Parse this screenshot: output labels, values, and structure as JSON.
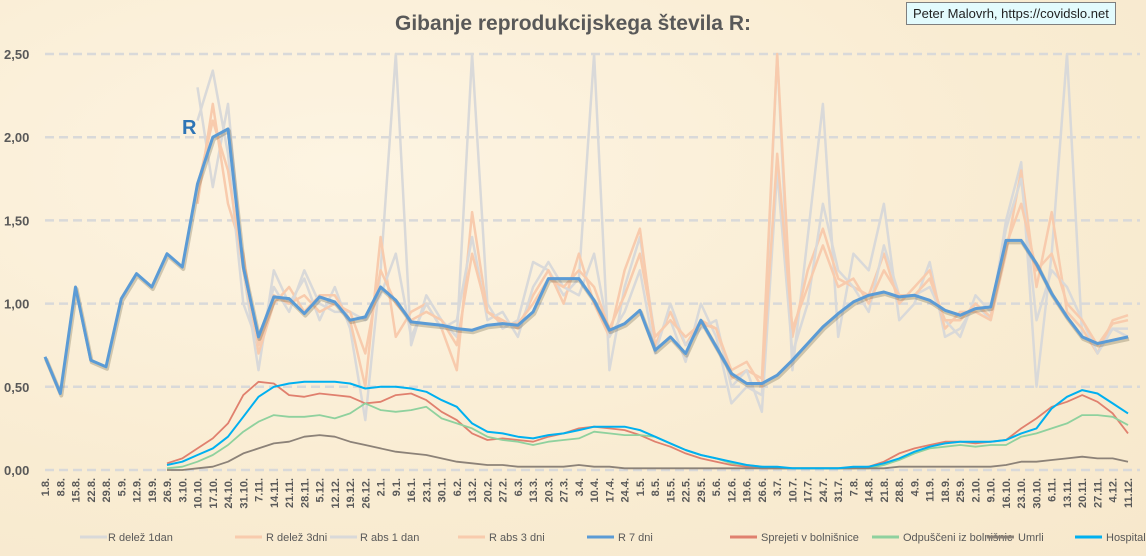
{
  "title": "Gibanje reprodukcijskega števila R:",
  "credit": "Peter Malovrh, https://covidslo.net",
  "chart_data": {
    "type": "line",
    "title": "Gibanje reprodukcijskega števila R:",
    "annotation": "R",
    "ylim": [
      0,
      2.5
    ],
    "yticks": [
      "0,00",
      "0,50",
      "1,00",
      "1,50",
      "2,00",
      "2,50"
    ],
    "ytick_values": [
      0,
      0.5,
      1,
      1.5,
      2,
      2.5
    ],
    "grid": "horizontal dashed",
    "legend_position": "bottom",
    "categories": [
      "1.8.",
      "8.8.",
      "15.8.",
      "22.8.",
      "29.8.",
      "5.9.",
      "12.9.",
      "19.9.",
      "26.9.",
      "3.10.",
      "10.10.",
      "17.10.",
      "24.10.",
      "31.10.",
      "7.11.",
      "14.11.",
      "21.11.",
      "28.11.",
      "5.12.",
      "12.12.",
      "19.12.",
      "26.12.",
      "2.1.",
      "9.1.",
      "16.1.",
      "23.1.",
      "30.1.",
      "6.2.",
      "13.2.",
      "20.2.",
      "27.2.",
      "6.3.",
      "13.3.",
      "20.3.",
      "27.3.",
      "3.4.",
      "10.4.",
      "17.4.",
      "24.4.",
      "1.5.",
      "8.5.",
      "15.5.",
      "22.5.",
      "29.5.",
      "5.6.",
      "12.6.",
      "19.6.",
      "26.6.",
      "3.7.",
      "10.7.",
      "17.7.",
      "24.7.",
      "31.7.",
      "7.8.",
      "14.8.",
      "21.8.",
      "28.8.",
      "4.9.",
      "11.9.",
      "18.9.",
      "25.9.",
      "2.10.",
      "9.10.",
      "16.10.",
      "23.10.",
      "30.10.",
      "6.11.",
      "13.11.",
      "20.11.",
      "27.11.",
      "4.12.",
      "11.12."
    ],
    "series": [
      {
        "name": "R delež 1dan",
        "color": "#d9d9d9",
        "values": [
          null,
          null,
          null,
          null,
          null,
          null,
          null,
          null,
          null,
          null,
          2.3,
          1.7,
          2.2,
          1.2,
          0.6,
          1.2,
          1.0,
          1.15,
          0.9,
          1.1,
          0.85,
          0.3,
          1.2,
          2.5,
          0.75,
          1.05,
          0.9,
          0.8,
          2.5,
          1.0,
          0.85,
          0.9,
          1.25,
          1.2,
          1.05,
          1.15,
          2.5,
          0.6,
          1.1,
          1.4,
          0.8,
          0.9,
          0.65,
          1.0,
          0.8,
          0.4,
          0.5,
          0.45,
          2.5,
          0.6,
          1.4,
          2.2,
          0.8,
          1.3,
          1.2,
          1.6,
          0.9,
          1.0,
          1.25,
          0.8,
          0.85,
          1.0,
          0.9,
          1.5,
          1.85,
          0.5,
          1.3,
          2.5,
          0.8,
          0.75,
          0.85,
          0.8
        ]
      },
      {
        "name": "R delež 3dni",
        "color": "#f8cbad",
        "values": [
          null,
          null,
          null,
          null,
          null,
          null,
          null,
          null,
          null,
          null,
          1.6,
          2.2,
          1.6,
          1.3,
          0.7,
          1.0,
          1.1,
          0.95,
          1.05,
          1.05,
          0.9,
          0.5,
          1.4,
          0.8,
          0.95,
          1.0,
          0.85,
          0.6,
          1.55,
          0.95,
          0.9,
          0.85,
          1.05,
          1.2,
          1.0,
          1.3,
          1.0,
          0.8,
          1.2,
          1.45,
          0.75,
          0.95,
          0.75,
          0.9,
          0.85,
          0.55,
          0.6,
          0.55,
          2.5,
          0.8,
          1.2,
          1.45,
          1.15,
          1.1,
          1.05,
          1.3,
          1.0,
          1.1,
          1.2,
          0.85,
          0.95,
          0.95,
          0.9,
          1.3,
          1.8,
          1.1,
          1.55,
          0.95,
          0.85,
          0.7,
          0.9,
          0.93
        ]
      },
      {
        "name": "R abs 1 dan",
        "color": "#d9d9d9",
        "values": [
          null,
          null,
          null,
          null,
          null,
          null,
          null,
          null,
          null,
          null,
          2.1,
          2.4,
          1.9,
          1.0,
          0.75,
          1.1,
          0.95,
          1.2,
          1.0,
          0.95,
          0.95,
          0.9,
          1.05,
          1.3,
          0.8,
          1.0,
          0.85,
          0.9,
          1.4,
          0.9,
          0.95,
          0.8,
          1.1,
          1.25,
          1.1,
          1.05,
          1.3,
          0.8,
          0.95,
          1.2,
          0.7,
          1.0,
          0.75,
          0.85,
          0.9,
          0.5,
          0.6,
          0.35,
          1.8,
          0.7,
          1.0,
          1.6,
          1.2,
          1.1,
          0.95,
          1.35,
          1.05,
          1.05,
          1.1,
          0.9,
          0.8,
          1.05,
          0.95,
          1.45,
          1.75,
          0.9,
          1.2,
          1.1,
          0.9,
          0.7,
          0.85,
          0.85
        ]
      },
      {
        "name": "R abs 3 dni",
        "color": "#f8cbad",
        "values": [
          null,
          null,
          null,
          null,
          null,
          null,
          null,
          null,
          null,
          null,
          1.7,
          2.1,
          1.8,
          1.2,
          0.75,
          1.05,
          1.0,
          1.05,
          0.95,
          1.0,
          0.95,
          0.7,
          1.2,
          1.0,
          0.9,
          0.95,
          0.9,
          0.75,
          1.3,
          0.95,
          0.88,
          0.88,
          1.0,
          1.15,
          1.1,
          1.2,
          1.1,
          0.85,
          1.05,
          1.3,
          0.8,
          0.9,
          0.8,
          0.88,
          0.85,
          0.6,
          0.65,
          0.5,
          1.9,
          0.85,
          1.1,
          1.35,
          1.1,
          1.15,
          1.0,
          1.2,
          1.05,
          1.05,
          1.15,
          0.9,
          0.9,
          1.0,
          0.92,
          1.35,
          1.6,
          1.2,
          1.3,
          1.0,
          0.9,
          0.75,
          0.88,
          0.9
        ]
      },
      {
        "name": "R 7 dni",
        "color": "#5b9bd5",
        "values": [
          0.68,
          0.46,
          1.1,
          0.66,
          0.62,
          1.03,
          1.18,
          1.1,
          1.3,
          1.22,
          1.72,
          2.0,
          2.05,
          1.22,
          0.8,
          1.04,
          1.03,
          0.94,
          1.04,
          1.01,
          0.9,
          0.92,
          1.1,
          1.02,
          0.89,
          0.88,
          0.87,
          0.85,
          0.84,
          0.87,
          0.88,
          0.87,
          0.95,
          1.15,
          1.15,
          1.15,
          1.02,
          0.84,
          0.88,
          0.96,
          0.72,
          0.8,
          0.7,
          0.9,
          0.74,
          0.58,
          0.52,
          0.52,
          0.57,
          0.66,
          0.76,
          0.86,
          0.94,
          1.01,
          1.05,
          1.07,
          1.04,
          1.05,
          1.02,
          0.96,
          0.93,
          0.97,
          0.98,
          1.38,
          1.38,
          1.24,
          1.06,
          0.92,
          0.8,
          0.76,
          0.78,
          0.8
        ]
      },
      {
        "name": "Sprejeti v bolnišnice",
        "color": "#e0806e",
        "values": [
          null,
          null,
          null,
          null,
          null,
          null,
          null,
          null,
          0.04,
          0.07,
          0.13,
          0.19,
          0.28,
          0.45,
          0.53,
          0.52,
          0.45,
          0.44,
          0.46,
          0.45,
          0.44,
          0.4,
          0.41,
          0.45,
          0.46,
          0.42,
          0.35,
          0.3,
          0.22,
          0.18,
          0.19,
          0.18,
          0.17,
          0.2,
          0.22,
          0.25,
          0.26,
          0.25,
          0.24,
          0.21,
          0.17,
          0.14,
          0.1,
          0.07,
          0.05,
          0.03,
          0.02,
          0.01,
          0.01,
          0.01,
          0.01,
          0.01,
          0.01,
          0.01,
          0.02,
          0.05,
          0.1,
          0.13,
          0.15,
          0.17,
          0.17,
          0.16,
          0.17,
          0.18,
          0.25,
          0.31,
          0.38,
          0.41,
          0.45,
          0.41,
          0.34,
          0.22
        ]
      },
      {
        "name": "Odpuščeni iz bolnišnic",
        "color": "#8fd19e",
        "values": [
          null,
          null,
          null,
          null,
          null,
          null,
          null,
          null,
          0.01,
          0.02,
          0.05,
          0.09,
          0.15,
          0.23,
          0.29,
          0.33,
          0.32,
          0.32,
          0.33,
          0.31,
          0.34,
          0.4,
          0.36,
          0.35,
          0.36,
          0.38,
          0.31,
          0.28,
          0.25,
          0.2,
          0.18,
          0.17,
          0.15,
          0.17,
          0.18,
          0.19,
          0.23,
          0.22,
          0.21,
          0.21,
          0.2,
          0.16,
          0.12,
          0.09,
          0.07,
          0.04,
          0.03,
          0.02,
          0.01,
          0.01,
          0.01,
          0.01,
          0.01,
          0.01,
          0.01,
          0.03,
          0.06,
          0.1,
          0.13,
          0.14,
          0.15,
          0.14,
          0.15,
          0.15,
          0.2,
          0.22,
          0.25,
          0.28,
          0.33,
          0.33,
          0.32,
          0.27
        ]
      },
      {
        "name": "Umrli",
        "color": "#8c8278",
        "values": [
          null,
          null,
          null,
          null,
          null,
          null,
          null,
          null,
          0.0,
          0.0,
          0.01,
          0.02,
          0.05,
          0.1,
          0.13,
          0.16,
          0.17,
          0.2,
          0.21,
          0.2,
          0.17,
          0.15,
          0.13,
          0.11,
          0.1,
          0.09,
          0.07,
          0.05,
          0.04,
          0.03,
          0.03,
          0.02,
          0.02,
          0.02,
          0.02,
          0.03,
          0.02,
          0.02,
          0.01,
          0.01,
          0.01,
          0.01,
          0.01,
          0.01,
          0.01,
          0.01,
          0.01,
          0.01,
          0.01,
          0.01,
          0.01,
          0.01,
          0.01,
          0.01,
          0.01,
          0.01,
          0.02,
          0.02,
          0.02,
          0.02,
          0.02,
          0.02,
          0.02,
          0.03,
          0.05,
          0.05,
          0.06,
          0.07,
          0.08,
          0.07,
          0.07,
          0.05
        ]
      },
      {
        "name": "Hospitalizirani",
        "color": "#00b0f0",
        "values": [
          null,
          null,
          null,
          null,
          null,
          null,
          null,
          null,
          0.03,
          0.05,
          0.09,
          0.13,
          0.2,
          0.32,
          0.44,
          0.5,
          0.52,
          0.53,
          0.53,
          0.53,
          0.52,
          0.49,
          0.5,
          0.5,
          0.49,
          0.47,
          0.42,
          0.38,
          0.28,
          0.23,
          0.22,
          0.2,
          0.19,
          0.21,
          0.22,
          0.24,
          0.26,
          0.26,
          0.26,
          0.24,
          0.2,
          0.16,
          0.12,
          0.09,
          0.07,
          0.05,
          0.03,
          0.02,
          0.02,
          0.01,
          0.01,
          0.01,
          0.01,
          0.02,
          0.02,
          0.04,
          0.07,
          0.11,
          0.14,
          0.16,
          0.17,
          0.17,
          0.17,
          0.18,
          0.22,
          0.25,
          0.37,
          0.44,
          0.48,
          0.46,
          0.4,
          0.34
        ]
      }
    ]
  }
}
